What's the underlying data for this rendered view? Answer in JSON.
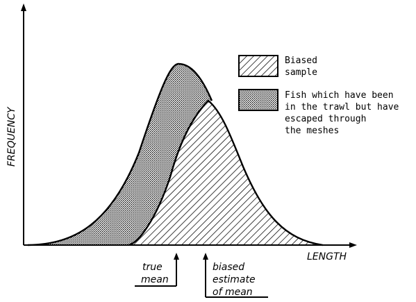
{
  "axes": {
    "y_label": "FREQUENCY",
    "x_label": "LENGTH"
  },
  "markers": {
    "true_mean": [
      "true",
      "mean"
    ],
    "biased_mean": [
      "biased",
      "estimate",
      "of mean"
    ]
  },
  "legend": {
    "biased_sample": [
      "Biased",
      "sample"
    ],
    "escaped": [
      "Fish which have been",
      "in the trawl but have",
      "escaped through",
      "the meshes"
    ]
  },
  "patterns": {
    "escaped": "dotted",
    "biased_sample": "hatched"
  }
}
